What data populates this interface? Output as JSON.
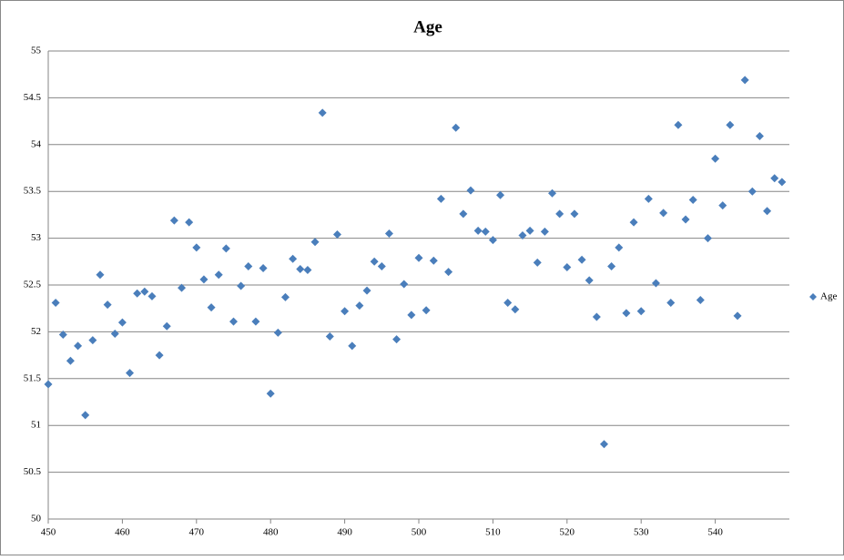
{
  "chart_data": {
    "type": "scatter",
    "title": "Age",
    "x": [
      450,
      451,
      452,
      453,
      454,
      455,
      456,
      457,
      458,
      459,
      460,
      461,
      462,
      463,
      464,
      465,
      466,
      467,
      468,
      469,
      470,
      471,
      472,
      473,
      474,
      475,
      476,
      477,
      478,
      479,
      480,
      481,
      482,
      483,
      484,
      485,
      486,
      487,
      488,
      489,
      490,
      491,
      492,
      493,
      494,
      495,
      496,
      497,
      498,
      499,
      500,
      501,
      502,
      503,
      504,
      505,
      506,
      507,
      508,
      509,
      510,
      511,
      512,
      513,
      514,
      515,
      516,
      517,
      518,
      519,
      520,
      521,
      522,
      523,
      524,
      525,
      526,
      527,
      528,
      529,
      530,
      531,
      532,
      533,
      534,
      535,
      536,
      537,
      538,
      539,
      540,
      541,
      542,
      543,
      544,
      545,
      546,
      547,
      548,
      549
    ],
    "series": [
      {
        "name": "Age",
        "color": "#4a7ebb",
        "values": [
          51.44,
          52.31,
          51.97,
          51.69,
          51.85,
          51.11,
          51.91,
          52.61,
          52.29,
          51.98,
          52.1,
          51.56,
          52.41,
          52.43,
          52.38,
          51.75,
          52.06,
          53.19,
          52.47,
          53.17,
          52.9,
          52.56,
          52.26,
          52.61,
          52.89,
          52.11,
          52.49,
          52.7,
          52.11,
          52.68,
          51.34,
          51.99,
          52.37,
          52.78,
          52.67,
          52.66,
          52.96,
          54.34,
          51.95,
          53.04,
          52.22,
          51.85,
          52.28,
          52.44,
          52.75,
          52.7,
          53.05,
          51.92,
          52.51,
          52.18,
          52.79,
          52.23,
          52.76,
          53.42,
          52.64,
          54.18,
          53.26,
          53.51,
          53.08,
          53.07,
          52.98,
          53.46,
          52.31,
          52.24,
          53.03,
          53.08,
          52.74,
          53.07,
          53.48,
          53.26,
          52.69,
          53.26,
          52.77,
          52.55,
          52.16,
          50.8,
          52.7,
          52.9,
          52.2,
          53.17,
          52.22,
          53.42,
          52.52,
          53.27,
          52.31,
          54.21,
          53.2,
          53.41,
          52.34,
          53.0,
          53.85,
          53.35,
          54.21,
          52.17,
          54.69,
          53.5,
          54.09,
          53.29,
          53.64,
          53.6
        ]
      }
    ],
    "xlim": [
      450,
      550
    ],
    "xticks": [
      450,
      460,
      470,
      480,
      490,
      500,
      510,
      520,
      530,
      540
    ],
    "ylim": [
      50,
      55
    ],
    "yticks": [
      50,
      50.5,
      51,
      51.5,
      52,
      52.5,
      53,
      53.5,
      54,
      54.5,
      55
    ],
    "grid": true,
    "legend": "right"
  }
}
